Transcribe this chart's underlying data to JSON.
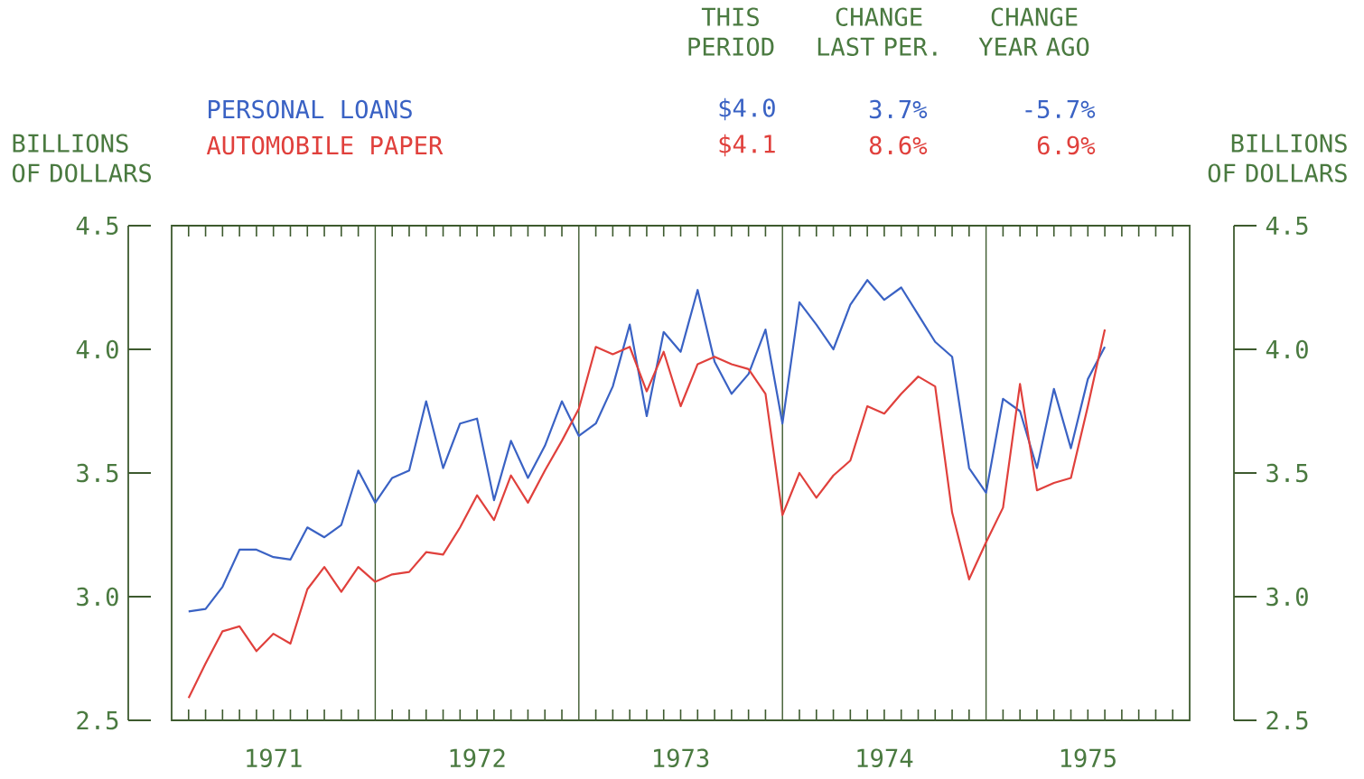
{
  "chart_data": {
    "type": "line",
    "ylabel": "BILLIONS OF DOLLARS",
    "y2label": "BILLIONS OF DOLLARS",
    "annotations": [
      "THIS PERIOD",
      "CHANGE LAST PER.",
      "CHANGE YEAR AGO",
      "$4.0",
      "3.7%",
      "-5.7%",
      "$4.1",
      "8.6%",
      "6.9%"
    ],
    "x": [
      "1971-02",
      "1971-03",
      "1971-04",
      "1971-05",
      "1971-06",
      "1971-07",
      "1971-08",
      "1971-09",
      "1971-10",
      "1971-11",
      "1971-12",
      "1972-01",
      "1972-02",
      "1972-03",
      "1972-04",
      "1972-05",
      "1972-06",
      "1972-07",
      "1972-08",
      "1972-09",
      "1972-10",
      "1972-11",
      "1972-12",
      "1973-01",
      "1973-02",
      "1973-03",
      "1973-04",
      "1973-05",
      "1973-06",
      "1973-07",
      "1973-08",
      "1973-09",
      "1973-10",
      "1973-11",
      "1973-12",
      "1974-01",
      "1974-02",
      "1974-03",
      "1974-04",
      "1974-05",
      "1974-06",
      "1974-07",
      "1974-08",
      "1974-09",
      "1974-10",
      "1974-11",
      "1974-12",
      "1975-01",
      "1975-02",
      "1975-03",
      "1975-04",
      "1975-05",
      "1975-06",
      "1975-07",
      "1975-08"
    ],
    "series": [
      {
        "name": "PERSONAL LOANS",
        "color": "#3a62c4",
        "values": [
          2.94,
          2.95,
          3.04,
          3.19,
          3.19,
          3.16,
          3.15,
          3.28,
          3.24,
          3.29,
          3.51,
          3.38,
          3.48,
          3.51,
          3.79,
          3.52,
          3.7,
          3.72,
          3.39,
          3.63,
          3.48,
          3.61,
          3.79,
          3.65,
          3.7,
          3.85,
          4.1,
          3.73,
          4.07,
          3.99,
          4.24,
          3.95,
          3.82,
          3.9,
          4.08,
          3.7,
          4.19,
          4.1,
          4.0,
          4.18,
          4.28,
          4.2,
          4.25,
          4.14,
          4.03,
          3.97,
          3.52,
          3.42,
          3.8,
          3.75,
          3.52,
          3.84,
          3.6,
          3.88,
          4.01
        ]
      },
      {
        "name": "AUTOMOBILE PAPER",
        "color": "#e0403c",
        "values": [
          2.59,
          2.73,
          2.86,
          2.88,
          2.78,
          2.85,
          2.81,
          3.03,
          3.12,
          3.02,
          3.12,
          3.06,
          3.09,
          3.1,
          3.18,
          3.17,
          3.28,
          3.41,
          3.31,
          3.49,
          3.38,
          3.51,
          3.63,
          3.76,
          4.01,
          3.98,
          4.01,
          3.83,
          3.99,
          3.77,
          3.94,
          3.97,
          3.94,
          3.92,
          3.82,
          3.33,
          3.5,
          3.4,
          3.49,
          3.55,
          3.77,
          3.74,
          3.82,
          3.89,
          3.85,
          3.34,
          3.07,
          3.22,
          3.36,
          3.86,
          3.43,
          3.46,
          3.48,
          3.77,
          4.08
        ]
      }
    ],
    "xlim": [
      "1971-01",
      "1976-01"
    ],
    "xticks": [
      {
        "value": "1971-02",
        "label": null
      },
      {
        "value": "1971-03",
        "label": null
      },
      {
        "value": "1971-04",
        "label": null
      },
      {
        "value": "1971-05",
        "label": null
      },
      {
        "value": "1971-06",
        "label": null
      },
      {
        "value": "1971-07",
        "label": "1971"
      },
      {
        "value": "1971-08",
        "label": null
      },
      {
        "value": "1971-09",
        "label": null
      },
      {
        "value": "1971-10",
        "label": null
      },
      {
        "value": "1971-11",
        "label": null
      },
      {
        "value": "1971-12",
        "label": null
      },
      {
        "value": "1972-02",
        "label": null
      },
      {
        "value": "1972-03",
        "label": null
      },
      {
        "value": "1972-04",
        "label": null
      },
      {
        "value": "1972-05",
        "label": null
      },
      {
        "value": "1972-06",
        "label": null
      },
      {
        "value": "1972-07",
        "label": "1972"
      },
      {
        "value": "1972-08",
        "label": null
      },
      {
        "value": "1972-09",
        "label": null
      },
      {
        "value": "1972-10",
        "label": null
      },
      {
        "value": "1972-11",
        "label": null
      },
      {
        "value": "1972-12",
        "label": null
      },
      {
        "value": "1973-02",
        "label": null
      },
      {
        "value": "1973-03",
        "label": null
      },
      {
        "value": "1973-04",
        "label": null
      },
      {
        "value": "1973-05",
        "label": null
      },
      {
        "value": "1973-06",
        "label": null
      },
      {
        "value": "1973-07",
        "label": "1973"
      },
      {
        "value": "1973-08",
        "label": null
      },
      {
        "value": "1973-09",
        "label": null
      },
      {
        "value": "1973-10",
        "label": null
      },
      {
        "value": "1973-11",
        "label": null
      },
      {
        "value": "1973-12",
        "label": null
      },
      {
        "value": "1974-02",
        "label": null
      },
      {
        "value": "1974-03",
        "label": null
      },
      {
        "value": "1974-04",
        "label": null
      },
      {
        "value": "1974-05",
        "label": null
      },
      {
        "value": "1974-06",
        "label": null
      },
      {
        "value": "1974-07",
        "label": "1974"
      },
      {
        "value": "1974-08",
        "label": null
      },
      {
        "value": "1974-09",
        "label": null
      },
      {
        "value": "1974-10",
        "label": null
      },
      {
        "value": "1974-11",
        "label": null
      },
      {
        "value": "1974-12",
        "label": null
      },
      {
        "value": "1975-02",
        "label": null
      },
      {
        "value": "1975-03",
        "label": null
      },
      {
        "value": "1975-04",
        "label": null
      },
      {
        "value": "1975-05",
        "label": null
      },
      {
        "value": "1975-06",
        "label": null
      },
      {
        "value": "1975-07",
        "label": "1975"
      },
      {
        "value": "1975-08",
        "label": null
      },
      {
        "value": "1975-09",
        "label": null
      },
      {
        "value": "1975-10",
        "label": null
      },
      {
        "value": "1975-11",
        "label": null
      },
      {
        "value": "1975-12",
        "label": null
      }
    ],
    "ylim": [
      2.5,
      4.5
    ],
    "yticks": [
      2.5,
      {
        "value": 3.0,
        "label": "3.0"
      },
      3.5,
      {
        "value": 4.0,
        "label": "4.0"
      },
      4.5
    ],
    "y2lim": [
      2.5,
      4.5
    ],
    "y2ticks": [
      2.5,
      {
        "value": 3.0,
        "label": "3.0"
      },
      3.5,
      {
        "value": 4.0,
        "label": "4.0"
      },
      4.5
    ],
    "ref_lines": [
      {
        "axis": "x",
        "value": "1972",
        "label": null
      },
      {
        "axis": "x",
        "value": "1973",
        "label": null
      },
      {
        "axis": "x",
        "value": "1974",
        "label": null
      },
      {
        "axis": "x",
        "value": "1975",
        "label": null
      }
    ]
  }
}
